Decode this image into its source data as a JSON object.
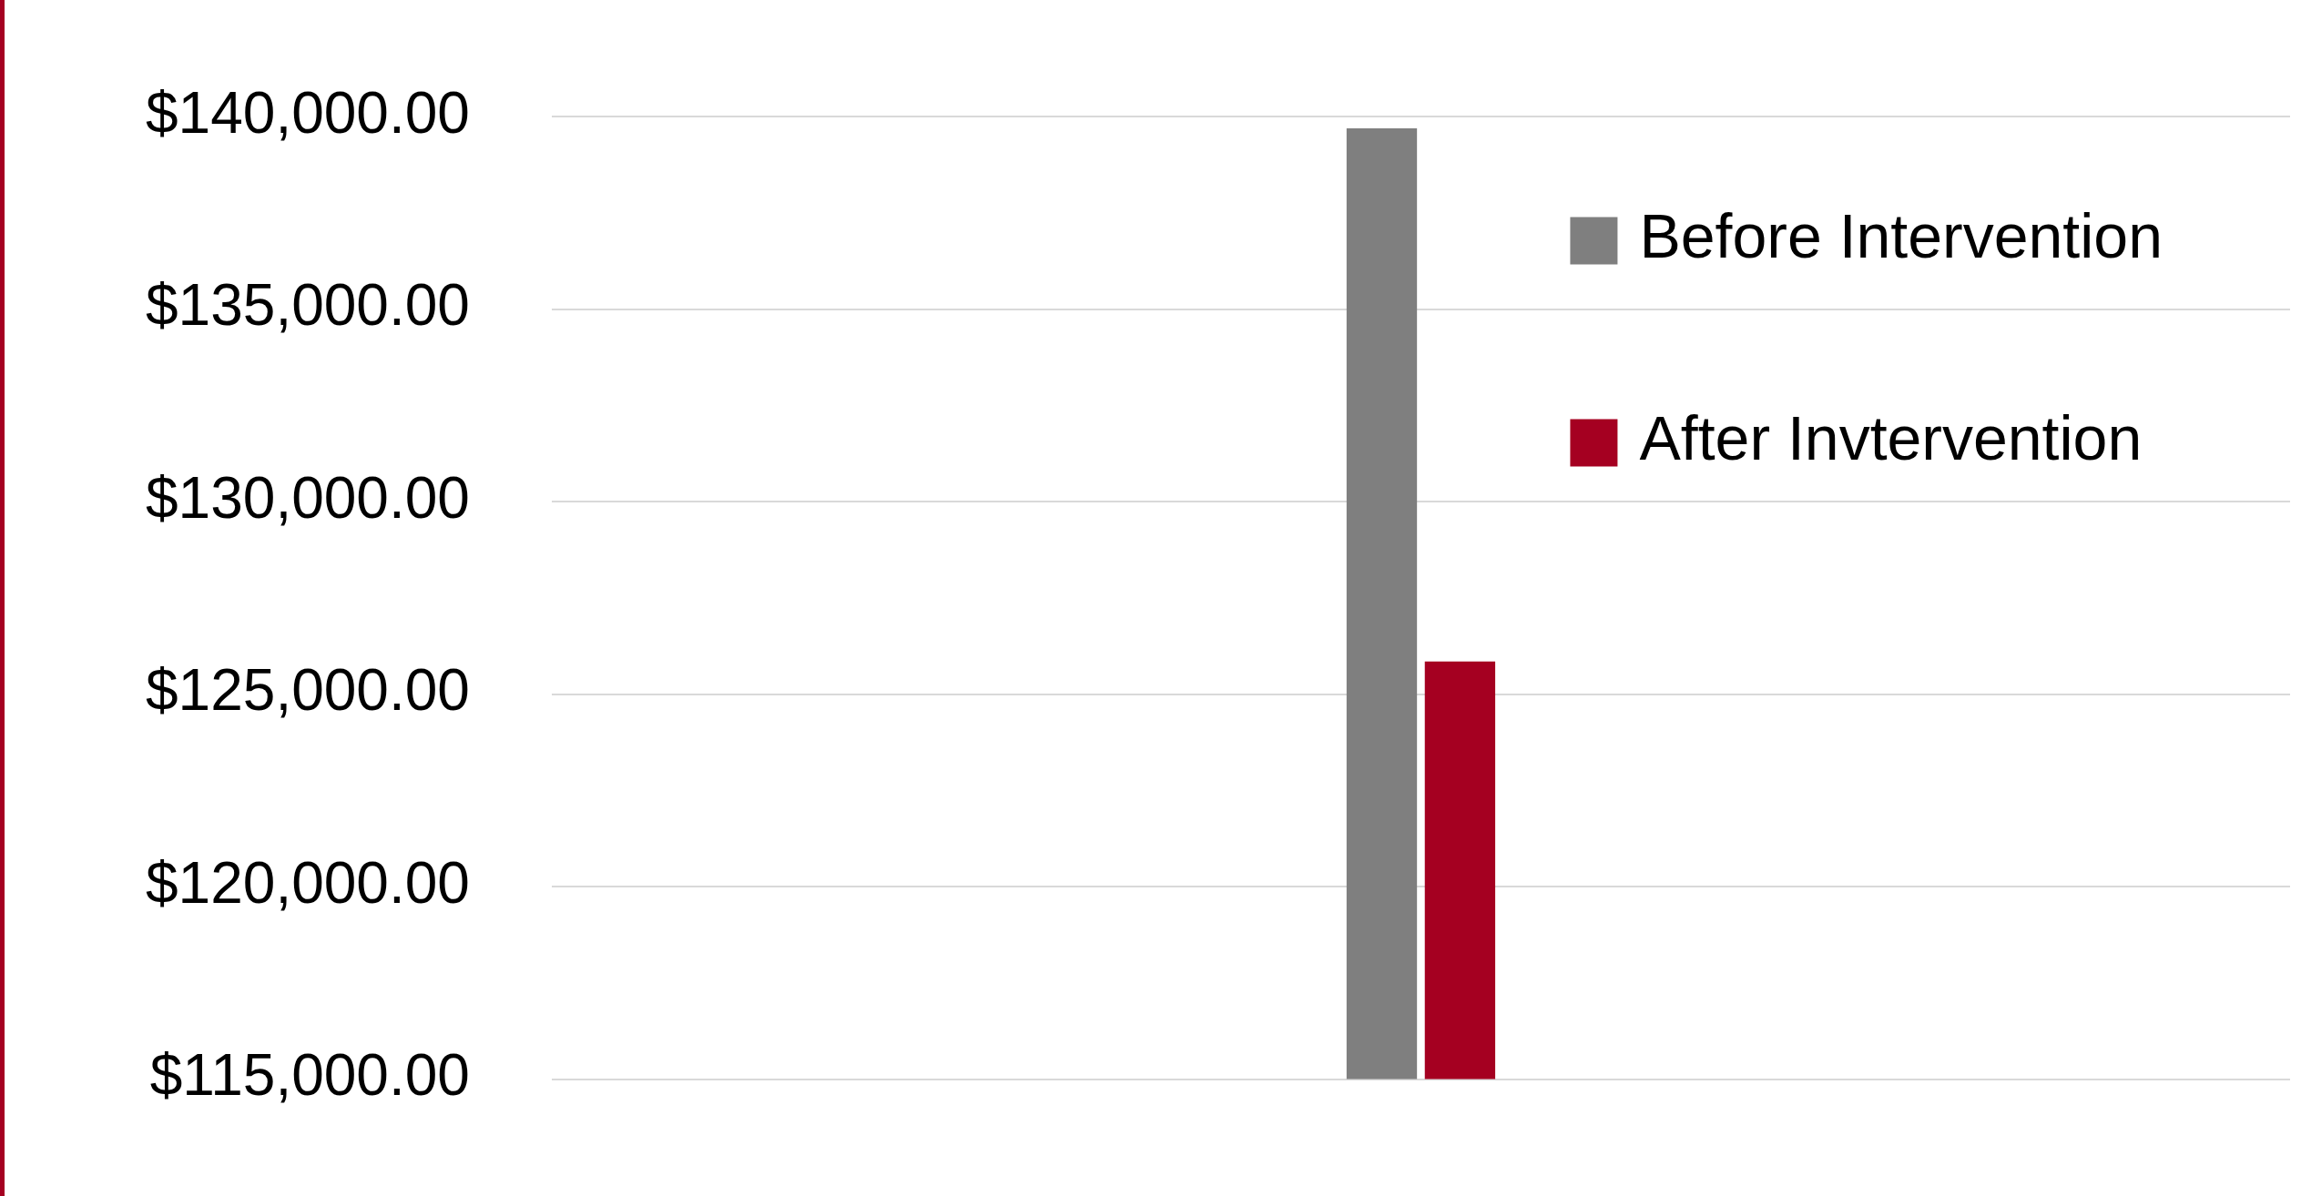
{
  "chart_data": {
    "type": "bar",
    "categories": [
      null
    ],
    "series": [
      {
        "name": "Before Intervention",
        "color": "#7f7f7f",
        "values": [
          139700
        ]
      },
      {
        "name": "After Invtervention",
        "color": "#a50021",
        "values": [
          125850
        ]
      }
    ],
    "ylim": [
      115000,
      140000
    ],
    "yticks": [
      {
        "value": 115000,
        "label": "$115,000.00"
      },
      {
        "value": 120000,
        "label": "$120,000.00"
      },
      {
        "value": 125000,
        "label": "$125,000.00"
      },
      {
        "value": 130000,
        "label": "$130,000.00"
      },
      {
        "value": 135000,
        "label": "$135,000.00"
      },
      {
        "value": 140000,
        "label": "$140,000.00"
      }
    ],
    "grid": "y",
    "legend": "top right"
  }
}
